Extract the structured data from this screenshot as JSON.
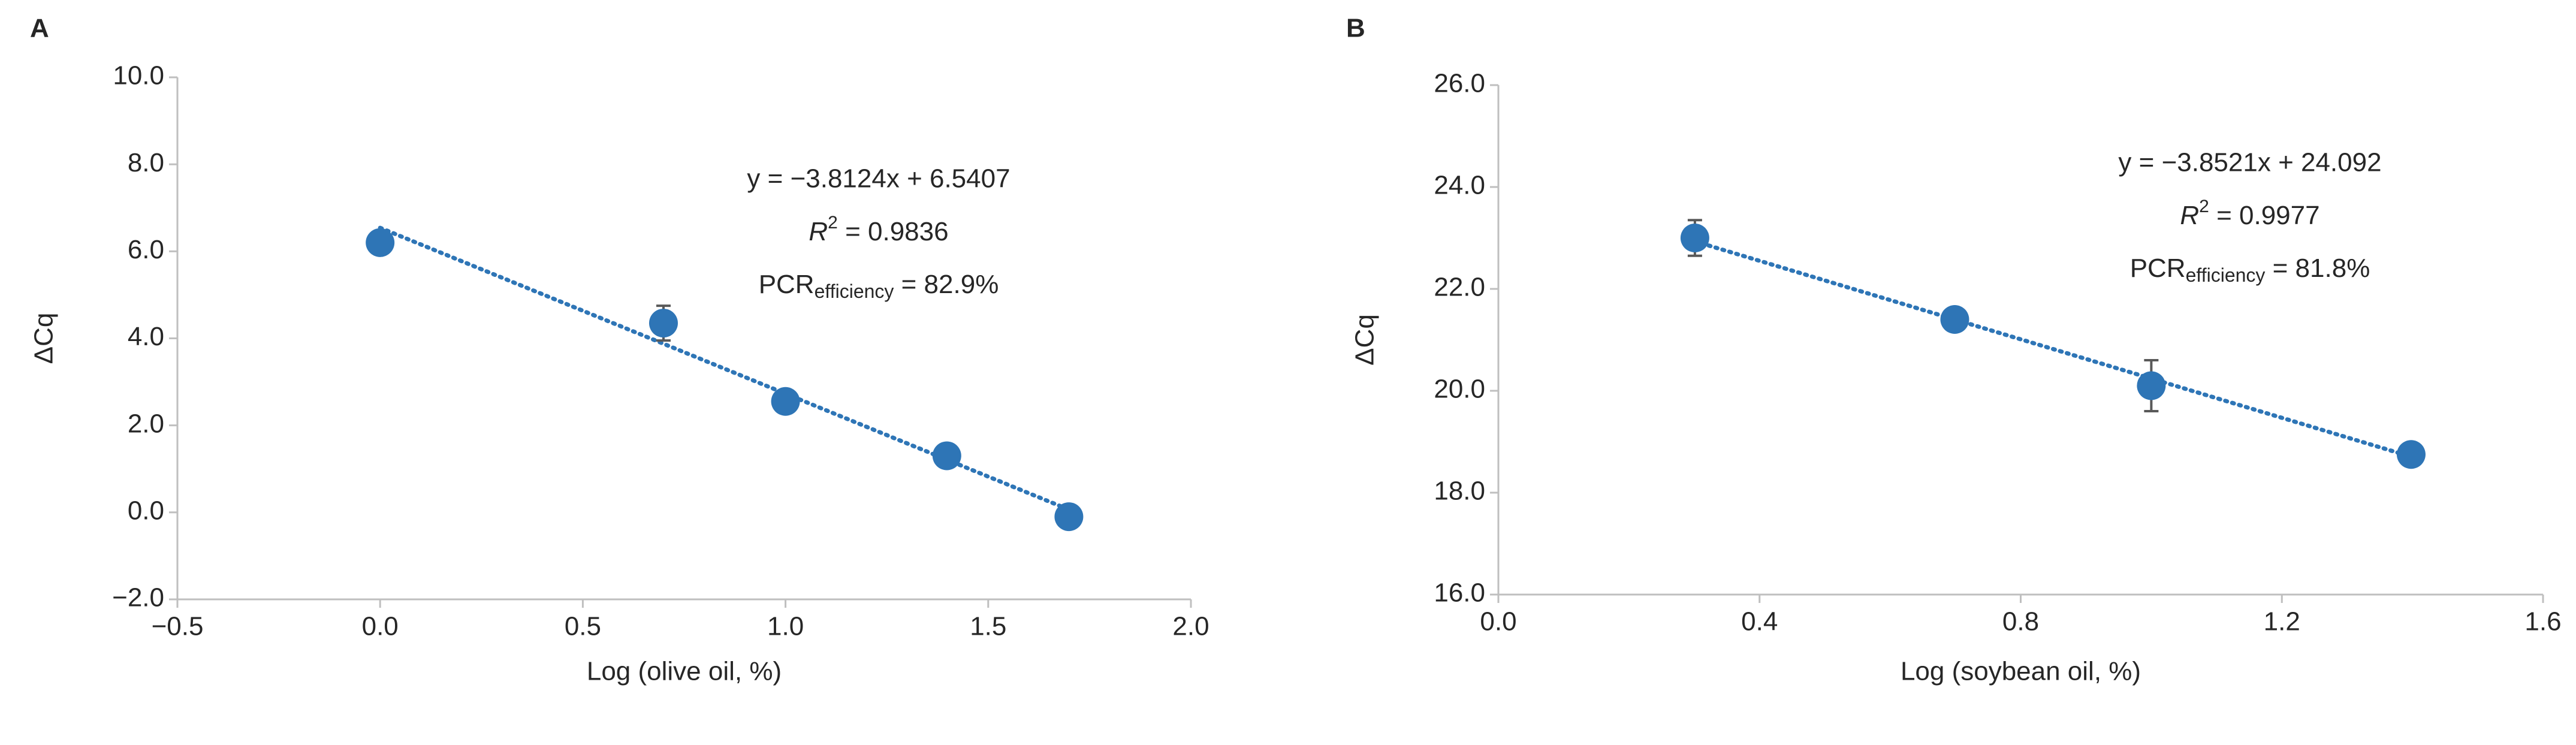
{
  "chart_data": [
    {
      "type": "scatter",
      "panel": "A",
      "xlabel": "Log (olive oil, %)",
      "ylabel": "ΔCq",
      "x": [
        0.0,
        0.699,
        1.0,
        1.398,
        1.699
      ],
      "values": [
        6.2,
        4.35,
        2.55,
        1.3,
        -0.1
      ],
      "errors": [
        0.1,
        0.4,
        0.1,
        0.1,
        0.1
      ],
      "color": "#2e75b6",
      "error_color": "#595959",
      "xlim": [
        -0.5,
        2.0
      ],
      "ylim": [
        -2.0,
        10.0
      ],
      "xticks": [
        {
          "value": -0.5,
          "label": "−0.5"
        },
        {
          "value": 0,
          "label": "0.0"
        },
        {
          "value": 0.5,
          "label": "0.5"
        },
        {
          "value": 1,
          "label": "1.0"
        },
        {
          "value": 1.5,
          "label": "1.5"
        },
        {
          "value": 2,
          "label": "2.0"
        }
      ],
      "yticks": [
        {
          "value": -2,
          "label": "−2.0"
        },
        {
          "value": 0,
          "label": "0.0"
        },
        {
          "value": 2,
          "label": "2.0"
        },
        {
          "value": 4,
          "label": "4.0"
        },
        {
          "value": 6,
          "label": "6.0"
        },
        {
          "value": 8,
          "label": "8.0"
        },
        {
          "value": 10,
          "label": "10.0"
        }
      ],
      "trendline": {
        "slope": -3.8124,
        "intercept": 6.5407
      },
      "equation": "y = −3.8124x + 6.5407",
      "r2": {
        "symbol": "R",
        "power": "2",
        "text": " = 0.9836"
      },
      "efficiency": {
        "symbol": "PCR",
        "subscript": "efficiency",
        "text": " = 82.9%"
      }
    },
    {
      "type": "scatter",
      "panel": "B",
      "xlabel": "Log (soybean oil, %)",
      "ylabel": "ΔCq",
      "x": [
        0.301,
        0.699,
        1.0,
        1.398
      ],
      "values": [
        23.0,
        21.4,
        20.1,
        18.75
      ],
      "errors": [
        0.35,
        0.1,
        0.5,
        0.1
      ],
      "color": "#2e75b6",
      "error_color": "#595959",
      "xlim": [
        0.0,
        1.6
      ],
      "ylim": [
        16.0,
        26.0
      ],
      "xticks": [
        {
          "value": 0,
          "label": "0.0"
        },
        {
          "value": 0.4,
          "label": "0.4"
        },
        {
          "value": 0.8,
          "label": "0.8"
        },
        {
          "value": 1.2,
          "label": "1.2"
        },
        {
          "value": 1.6,
          "label": "1.6"
        }
      ],
      "yticks": [
        {
          "value": 16,
          "label": "16.0"
        },
        {
          "value": 18,
          "label": "18.0"
        },
        {
          "value": 20,
          "label": "20.0"
        },
        {
          "value": 22,
          "label": "22.0"
        },
        {
          "value": 24,
          "label": "24.0"
        },
        {
          "value": 26,
          "label": "26.0"
        }
      ],
      "trendline": {
        "slope": -3.8521,
        "intercept": 24.092
      },
      "equation": "y = −3.8521x + 24.092",
      "r2": {
        "symbol": "R",
        "power": "2",
        "text": " = 0.9977"
      },
      "efficiency": {
        "symbol": "PCR",
        "subscript": "efficiency",
        "text": " = 81.8%"
      }
    }
  ]
}
